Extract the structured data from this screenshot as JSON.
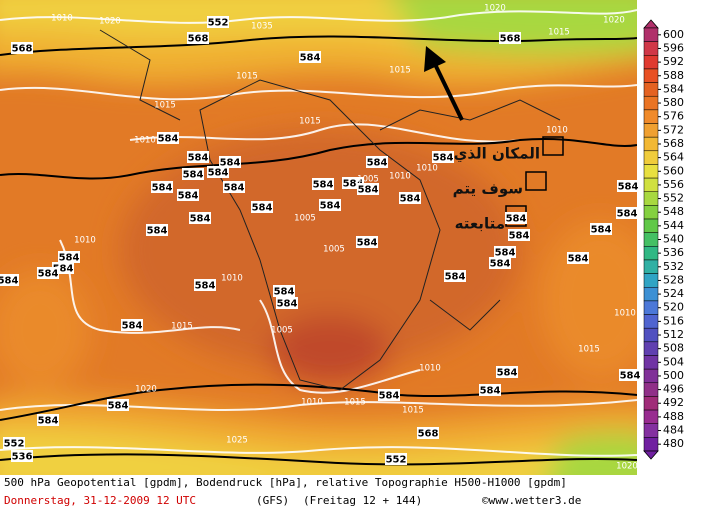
{
  "map": {
    "geopotential_labels": [
      "552",
      "568",
      "568",
      "568",
      "584",
      "584",
      "584",
      "584",
      "584",
      "584",
      "584",
      "584",
      "584",
      "584",
      "584",
      "584",
      "584",
      "584",
      "584",
      "584",
      "584",
      "584",
      "584",
      "584",
      "584",
      "584",
      "584",
      "584",
      "584",
      "584",
      "584",
      "584",
      "584",
      "584",
      "584",
      "584",
      "584",
      "584",
      "584",
      "584",
      "584",
      "584",
      "584",
      "584",
      "584",
      "584",
      "584",
      "568",
      "552",
      "536",
      "552"
    ],
    "pressure_labels": [
      "1010",
      "1020",
      "1035",
      "1020",
      "1015",
      "1015",
      "1015",
      "1015",
      "1015",
      "1010",
      "1010",
      "1010",
      "1010",
      "1005",
      "1005",
      "1005",
      "1010",
      "1010",
      "1015",
      "1005",
      "1010",
      "1015",
      "1010",
      "1020",
      "1010",
      "1015",
      "1015",
      "1025",
      "1020",
      "1020"
    ],
    "annotation": [
      "المكان الذي",
      "سوف يتم",
      "متابعته"
    ]
  },
  "color_bar": {
    "ticks": [
      600,
      596,
      592,
      588,
      584,
      580,
      576,
      572,
      568,
      564,
      560,
      556,
      552,
      548,
      544,
      540,
      536,
      532,
      528,
      524,
      520,
      516,
      512,
      508,
      504,
      500,
      496,
      492,
      488,
      484,
      480
    ],
    "colors": [
      "#b0306a",
      "#d03848",
      "#e03a30",
      "#e85024",
      "#e46222",
      "#ea7424",
      "#f08a2a",
      "#f0a030",
      "#f2b834",
      "#f0cc3c",
      "#e8e040",
      "#d0e040",
      "#a8d840",
      "#84d040",
      "#60c848",
      "#44c064",
      "#30b884",
      "#30b0a4",
      "#30a4c4",
      "#3c90d4",
      "#4c78d8",
      "#5064d0",
      "#5050c0",
      "#6040b0",
      "#7034a4",
      "#803098",
      "#903088",
      "#a02c78",
      "#982c90",
      "#8430a0",
      "#7020a0"
    ]
  },
  "footer": {
    "line1": "500 hPa Geopotential [gpdm], Bodendruck [hPa], relative Topographie H500-H1000 [gpdm]",
    "date": "Donnerstag, 31-12-2009  12 UTC",
    "model": "(GFS)",
    "forecast": "(Freitag 12 + 144)",
    "source": "©www.wetter3.de"
  }
}
